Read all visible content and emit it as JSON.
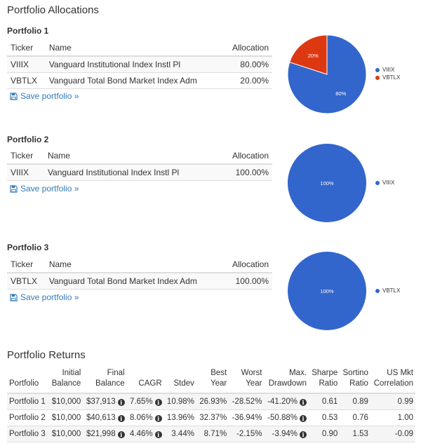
{
  "allocations_title": "Portfolio Allocations",
  "alloc_headers": {
    "ticker": "Ticker",
    "name": "Name",
    "allocation": "Allocation"
  },
  "save_label": "Save portfolio »",
  "colors": {
    "blue": "#3366cc",
    "red": "#dc3912",
    "link": "#337ab7"
  },
  "portfolios": [
    {
      "title": "Portfolio 1",
      "rows": [
        {
          "ticker": "VIIIX",
          "name": "Vanguard Institutional Index Instl Pl",
          "allocation": "80.00%"
        },
        {
          "ticker": "VBTLX",
          "name": "Vanguard Total Bond Market Index Adm",
          "allocation": "20.00%"
        }
      ]
    },
    {
      "title": "Portfolio 2",
      "rows": [
        {
          "ticker": "VIIIX",
          "name": "Vanguard Institutional Index Instl Pl",
          "allocation": "100.00%"
        }
      ]
    },
    {
      "title": "Portfolio 3",
      "rows": [
        {
          "ticker": "VBTLX",
          "name": "Vanguard Total Bond Market Index Adm",
          "allocation": "100.00%"
        }
      ]
    }
  ],
  "chart_data": [
    {
      "type": "pie",
      "labels": [
        "VIIIX",
        "VBTLX"
      ],
      "values": [
        80,
        20
      ],
      "slice_labels": [
        "80%",
        "20%"
      ],
      "colors": [
        "#3366cc",
        "#dc3912"
      ],
      "legend": "right"
    },
    {
      "type": "pie",
      "labels": [
        "VIIIX"
      ],
      "values": [
        100
      ],
      "slice_labels": [
        "100%"
      ],
      "colors": [
        "#3366cc"
      ],
      "legend": "right"
    },
    {
      "type": "pie",
      "labels": [
        "VBTLX"
      ],
      "values": [
        100
      ],
      "slice_labels": [
        "100%"
      ],
      "colors": [
        "#3366cc"
      ],
      "legend": "right"
    }
  ],
  "returns": {
    "title": "Portfolio Returns",
    "headers": [
      [
        "Portfolio"
      ],
      [
        "Initial",
        "Balance"
      ],
      [
        "Final",
        "Balance"
      ],
      [
        "CAGR"
      ],
      [
        "Stdev"
      ],
      [
        "Best",
        "Year"
      ],
      [
        "Worst",
        "Year"
      ],
      [
        "Max.",
        "Drawdown"
      ],
      [
        "Sharpe",
        "Ratio"
      ],
      [
        "Sortino",
        "Ratio"
      ],
      [
        "US Mkt",
        "Correlation"
      ]
    ],
    "rows": [
      {
        "portfolio": "Portfolio 1",
        "initial": "$10,000",
        "final": "$37,913",
        "cagr": "7.65%",
        "stdev": "10.98%",
        "best": "26.93%",
        "worst": "-28.52%",
        "drawdown": "-41.20%",
        "sharpe": "0.61",
        "sortino": "0.89",
        "corr": "0.99"
      },
      {
        "portfolio": "Portfolio 2",
        "initial": "$10,000",
        "final": "$40,613",
        "cagr": "8.06%",
        "stdev": "13.96%",
        "best": "32.37%",
        "worst": "-36.94%",
        "drawdown": "-50.88%",
        "sharpe": "0.53",
        "sortino": "0.76",
        "corr": "1.00"
      },
      {
        "portfolio": "Portfolio 3",
        "initial": "$10,000",
        "final": "$21,998",
        "cagr": "4.46%",
        "stdev": "3.44%",
        "best": "8.71%",
        "worst": "-2.15%",
        "drawdown": "-3.94%",
        "sharpe": "0.90",
        "sortino": "1.53",
        "corr": "-0.09"
      }
    ]
  }
}
